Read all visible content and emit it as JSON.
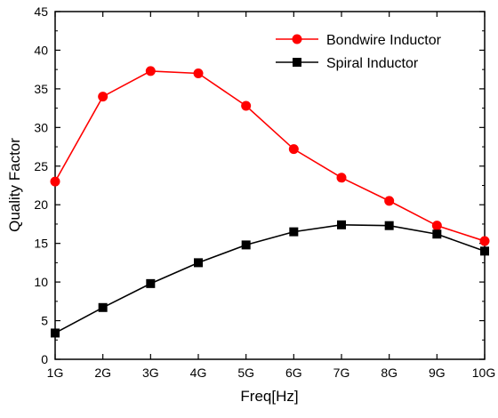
{
  "chart_data": {
    "type": "line",
    "xlabel": "Freq[Hz]",
    "ylabel": "Quality Factor",
    "categories": [
      "1G",
      "2G",
      "3G",
      "4G",
      "5G",
      "6G",
      "7G",
      "8G",
      "9G",
      "10G"
    ],
    "ylim": [
      0,
      45
    ],
    "yticks": [
      0,
      5,
      10,
      15,
      20,
      25,
      30,
      35,
      40,
      45
    ],
    "grid": false,
    "legend_position": "top-right",
    "series": [
      {
        "name": "Bondwire Inductor",
        "color": "#ff0000",
        "marker": "circle",
        "values": [
          23.0,
          34.0,
          37.3,
          37.0,
          32.8,
          27.2,
          23.5,
          20.5,
          17.3,
          15.3
        ]
      },
      {
        "name": "Spiral Inductor",
        "color": "#000000",
        "marker": "square",
        "values": [
          3.4,
          6.7,
          9.8,
          12.5,
          14.8,
          16.5,
          17.4,
          17.3,
          16.2,
          14.0
        ]
      }
    ]
  }
}
